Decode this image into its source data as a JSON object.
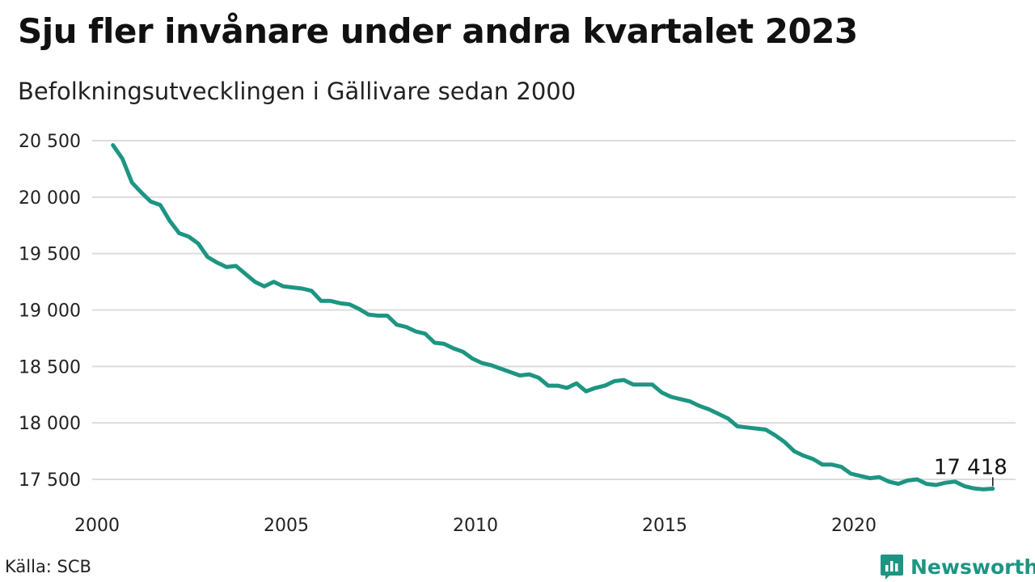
{
  "title": "Sju fler invånare under andra kvartalet 2023",
  "subtitle": "Befolkningsutvecklingen i Gällivare sedan 2000",
  "source": "Källa: SCB",
  "brand": {
    "name": "Newsworthy",
    "icon": "newsworthy-logo-icon",
    "color": "#1e9583"
  },
  "chart_data": {
    "type": "line",
    "title": "Sju fler invånare under andra kvartalet 2023",
    "subtitle": "Befolkningsutvecklingen i Gällivare sedan 2000",
    "line_color": "#1e9583",
    "grid": true,
    "xlim": [
      2000,
      2023.5
    ],
    "ylim": [
      17300,
      20550
    ],
    "xticks": [
      2000,
      2005,
      2010,
      2015,
      2020
    ],
    "xtick_labels": [
      "2000",
      "2005",
      "2010",
      "2015",
      "2020"
    ],
    "yticks": [
      17500,
      18000,
      18500,
      19000,
      19500,
      20000,
      20500
    ],
    "ytick_labels": [
      "17 500",
      "18 000",
      "18 500",
      "19 000",
      "19 500",
      "20 000",
      "20 500"
    ],
    "end_label": "17 418",
    "series": [
      {
        "x": [
          2000.25,
          2000.5,
          2000.75,
          2001.0,
          2001.25,
          2001.5,
          2001.75,
          2002.0,
          2002.25,
          2002.5,
          2002.75,
          2003.0,
          2003.25,
          2003.5,
          2003.75,
          2004.0,
          2004.25,
          2004.5,
          2004.75,
          2005.0,
          2005.25,
          2005.5,
          2005.75,
          2006.0,
          2006.25,
          2006.5,
          2006.75,
          2007.0,
          2007.25,
          2007.5,
          2007.75,
          2008.0,
          2008.25,
          2008.5,
          2008.75,
          2009.0,
          2009.25,
          2009.5,
          2009.75,
          2010.0,
          2010.25,
          2010.5,
          2010.75,
          2011.0,
          2011.25,
          2011.5,
          2011.75,
          2012.0,
          2012.25,
          2012.5,
          2012.75,
          2013.0,
          2013.25,
          2013.5,
          2013.75,
          2014.0,
          2014.25,
          2014.5,
          2014.75,
          2015.0,
          2015.25,
          2015.5,
          2015.75,
          2016.0,
          2016.25,
          2016.5,
          2016.75,
          2017.0,
          2017.25,
          2017.5,
          2017.75,
          2018.0,
          2018.25,
          2018.5,
          2018.75,
          2019.0,
          2019.25,
          2019.5,
          2019.75,
          2020.0,
          2020.25,
          2020.5,
          2020.75,
          2021.0,
          2021.25,
          2021.5,
          2021.75,
          2022.0,
          2022.25,
          2022.5,
          2022.75,
          2023.0,
          2023.25,
          2023.5
        ],
        "values": [
          20460,
          20340,
          20130,
          20040,
          19960,
          19930,
          19790,
          19680,
          19650,
          19590,
          19470,
          19420,
          19380,
          19390,
          19320,
          19250,
          19210,
          19250,
          19210,
          19200,
          19190,
          19170,
          19080,
          19080,
          19060,
          19050,
          19010,
          18960,
          18950,
          18950,
          18870,
          18850,
          18810,
          18790,
          18710,
          18700,
          18660,
          18630,
          18570,
          18530,
          18510,
          18480,
          18450,
          18420,
          18430,
          18400,
          18330,
          18330,
          18310,
          18350,
          18280,
          18310,
          18330,
          18370,
          18380,
          18340,
          18340,
          18340,
          18270,
          18230,
          18210,
          18190,
          18150,
          18120,
          18080,
          18040,
          17970,
          17960,
          17950,
          17940,
          17890,
          17830,
          17750,
          17710,
          17680,
          17630,
          17630,
          17610,
          17550,
          17530,
          17510,
          17520,
          17480,
          17460,
          17490,
          17500,
          17460,
          17450,
          17470,
          17480,
          17440,
          17420,
          17411,
          17418
        ]
      }
    ]
  }
}
